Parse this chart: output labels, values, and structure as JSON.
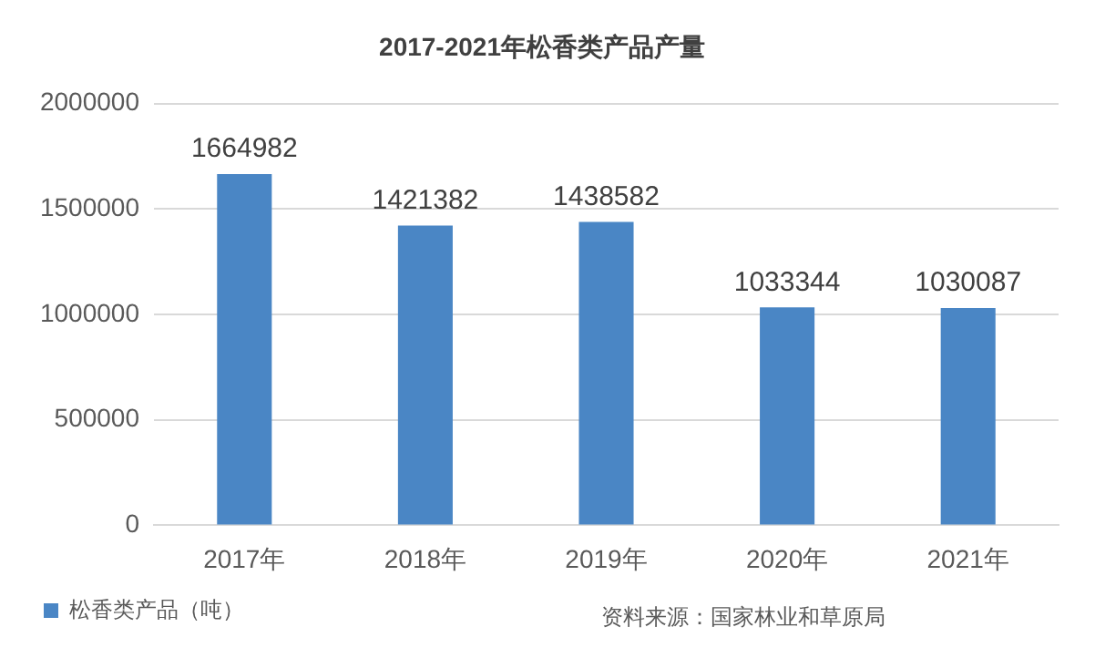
{
  "chart_data": {
    "type": "bar",
    "title": "2017-2021年松香类产品产量",
    "categories": [
      "2017年",
      "2018年",
      "2019年",
      "2020年",
      "2021年"
    ],
    "series": [
      {
        "name": "松香类产品（吨）",
        "color": "#4a86c5",
        "values": [
          1664982,
          1421382,
          1438582,
          1033344,
          1030087
        ]
      }
    ],
    "ylim": [
      0,
      2000000
    ],
    "yticks": [
      0,
      500000,
      1000000,
      1500000,
      2000000
    ],
    "grid": "y",
    "legend": "bottom",
    "data_labels": true,
    "annotations": [
      "资料来源：国家林业和草原局"
    ]
  }
}
